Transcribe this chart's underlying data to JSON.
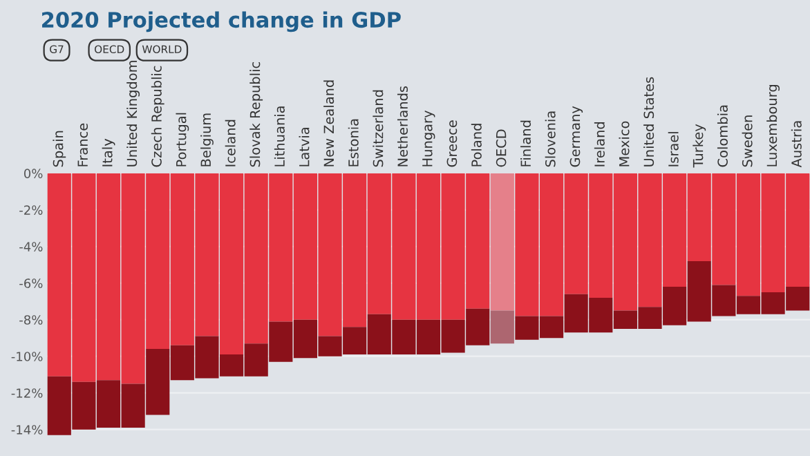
{
  "chart_data": {
    "type": "bar",
    "title": "2020 Projected change in GDP",
    "annotations": [
      "G7",
      "OECD",
      "WORLD"
    ],
    "categories": [
      "Spain",
      "France",
      "Italy",
      "United Kingdom",
      "Czech Republic",
      "Portugal",
      "Belgium",
      "Iceland",
      "Slovak Republic",
      "Lithuania",
      "Latvia",
      "New Zealand",
      "Estonia",
      "Switzerland",
      "Netherlands",
      "Hungary",
      "Greece",
      "Poland",
      "OECD",
      "Finland",
      "Slovenia",
      "Germany",
      "Ireland",
      "Mexico",
      "United States",
      "Israel",
      "Turkey",
      "Colombia",
      "Sweden",
      "Luxembourg",
      "Austria"
    ],
    "stacked": true,
    "series": [
      {
        "colors": [
          "#e63441",
          "#e63441",
          "#e63441",
          "#e63441",
          "#e63441",
          "#e63441",
          "#e63441",
          "#e63441",
          "#e63441",
          "#e63441",
          "#e63441",
          "#e63441",
          "#e63441",
          "#e63441",
          "#e63441",
          "#e63441",
          "#e63441",
          "#e63441",
          "#e5808a",
          "#e63441",
          "#e63441",
          "#e63441",
          "#e63441",
          "#e63441",
          "#e63441",
          "#e63441",
          "#e63441",
          "#e63441",
          "#e63441",
          "#e63441",
          "#e63441"
        ],
        "values": [
          -11.1,
          -11.4,
          -11.3,
          -11.5,
          -9.6,
          -9.4,
          -8.9,
          -9.9,
          -9.3,
          -8.1,
          -8.0,
          -8.9,
          -8.4,
          -7.7,
          -8.0,
          -8.0,
          -8.0,
          -7.4,
          -7.5,
          -7.8,
          -7.8,
          -6.6,
          -6.8,
          -7.5,
          -7.3,
          -6.2,
          -4.8,
          -6.1,
          -6.7,
          -6.5,
          -6.2
        ]
      },
      {
        "colors": [
          "#8b111a",
          "#8b111a",
          "#8b111a",
          "#8b111a",
          "#8b111a",
          "#8b111a",
          "#8b111a",
          "#8b111a",
          "#8b111a",
          "#8b111a",
          "#8b111a",
          "#8b111a",
          "#8b111a",
          "#8b111a",
          "#8b111a",
          "#8b111a",
          "#8b111a",
          "#8b111a",
          "#ad6670",
          "#8b111a",
          "#8b111a",
          "#8b111a",
          "#8b111a",
          "#8b111a",
          "#8b111a",
          "#8b111a",
          "#8b111a",
          "#8b111a",
          "#8b111a",
          "#8b111a",
          "#8b111a"
        ],
        "values": [
          -3.2,
          -2.6,
          -2.6,
          -2.4,
          -3.6,
          -1.9,
          -2.3,
          -1.2,
          -1.8,
          -2.2,
          -2.1,
          -1.1,
          -1.5,
          -2.2,
          -1.9,
          -1.9,
          -1.8,
          -2.0,
          -1.8,
          -1.3,
          -1.2,
          -2.1,
          -1.9,
          -1.0,
          -1.2,
          -2.1,
          -3.3,
          -1.7,
          -1.0,
          -1.2,
          -1.3
        ]
      }
    ],
    "ylim": [
      -14.4,
      0
    ],
    "yticks": [
      {
        "value": 0,
        "label": "0%"
      },
      {
        "value": -2,
        "label": "-2%"
      },
      {
        "value": -4,
        "label": "-4%"
      },
      {
        "value": -6,
        "label": "-6%"
      },
      {
        "value": -8,
        "label": "-8%"
      },
      {
        "value": -10,
        "label": "-10%"
      },
      {
        "value": -12,
        "label": "-12%"
      },
      {
        "value": -14,
        "label": "-14%"
      }
    ],
    "grid": "y",
    "legend": false
  }
}
